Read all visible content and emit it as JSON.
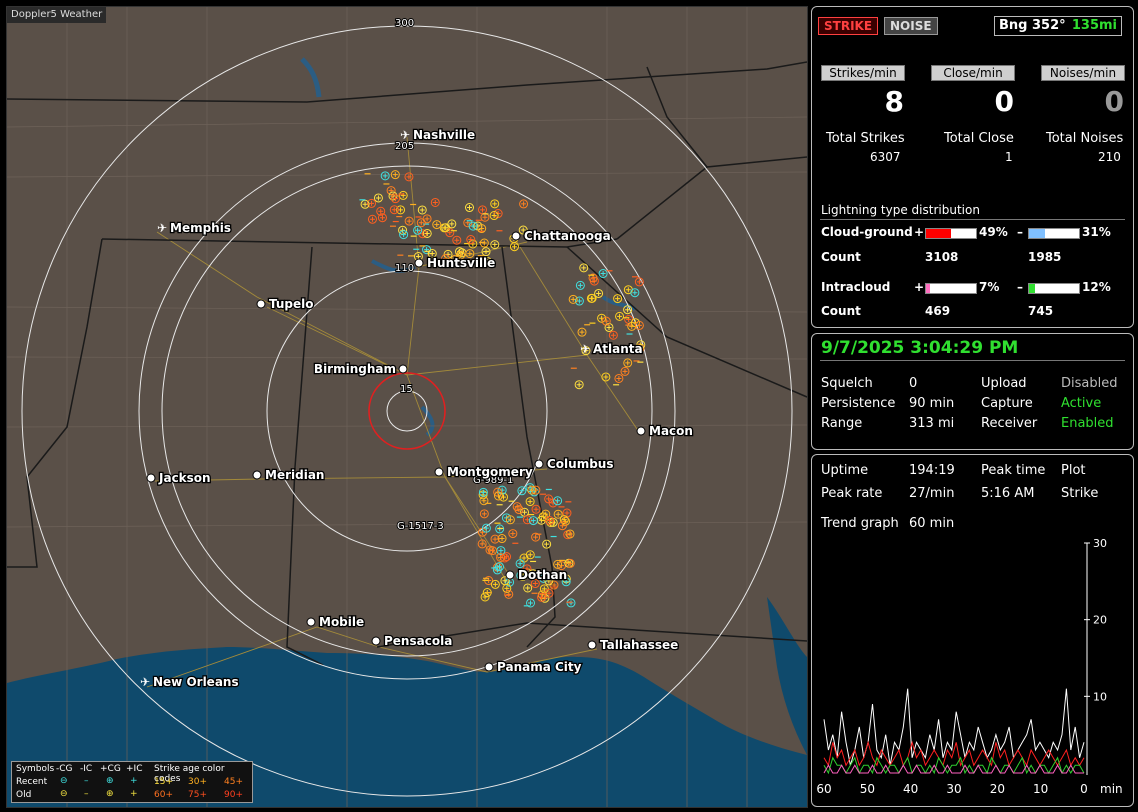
{
  "app": {
    "title": "Doppler5 Weather"
  },
  "map": {
    "ring_labels": [
      "300",
      "205",
      "110",
      "15"
    ],
    "cities": [
      {
        "name": "Nashville",
        "type": "airport"
      },
      {
        "name": "Memphis",
        "type": "airport"
      },
      {
        "name": "Chattanooga",
        "type": "city"
      },
      {
        "name": "Huntsville",
        "type": "city"
      },
      {
        "name": "Tupelo",
        "type": "city"
      },
      {
        "name": "Atlanta",
        "type": "airport"
      },
      {
        "name": "Birmingham",
        "type": "city"
      },
      {
        "name": "Macon",
        "type": "city"
      },
      {
        "name": "Jackson",
        "type": "city"
      },
      {
        "name": "Meridian",
        "type": "city"
      },
      {
        "name": "Montgomery",
        "type": "city"
      },
      {
        "name": "Columbus",
        "type": "city"
      },
      {
        "name": "Dothan",
        "type": "city"
      },
      {
        "name": "Mobile",
        "type": "city"
      },
      {
        "name": "Pensacola",
        "type": "city"
      },
      {
        "name": "Tallahassee",
        "type": "city"
      },
      {
        "name": "Panama City",
        "type": "city"
      },
      {
        "name": "New Orleans",
        "type": "airport"
      }
    ],
    "road_labels": [
      "G-989-1",
      "G-1517-3"
    ],
    "colors": {
      "land": "#5a5048",
      "water": "#0f4a6c",
      "rings": "#e8e8e8",
      "center_ring": "#e02020"
    }
  },
  "legend": {
    "symbols_label": "Symbols",
    "columns": [
      "-CG",
      "-IC",
      "+CG",
      "+IC"
    ],
    "rows": [
      "Recent",
      "Old"
    ],
    "age_title": "Strike age color codes",
    "recent_ages": [
      "15+",
      "30+",
      "45+"
    ],
    "old_ages": [
      "60+",
      "75+",
      "90+"
    ]
  },
  "header": {
    "strike_label": "STRIKE",
    "noise_label": "NOISE",
    "bearing": "Bng 352°",
    "distance": "135mi"
  },
  "rates": [
    {
      "label": "Strikes/min",
      "value": "8",
      "total_label": "Total Strikes",
      "total": "6307"
    },
    {
      "label": "Close/min",
      "value": "0",
      "total_label": "Total Close",
      "total": "1"
    },
    {
      "label": "Noises/min",
      "value": "0",
      "total_label": "Total Noises",
      "total": "210"
    }
  ],
  "distribution": {
    "title": "Lightning type distribution",
    "count_label": "Count",
    "cloud_ground": {
      "label": "Cloud-ground",
      "pos_pct": "49%",
      "neg_pct": "31%",
      "pos_count": "3108",
      "neg_count": "1985",
      "pos_fill": 0.49,
      "neg_fill": 0.31
    },
    "intracloud": {
      "label": "Intracloud",
      "pos_pct": "7%",
      "neg_pct": "12%",
      "pos_count": "469",
      "neg_count": "745",
      "pos_fill": 0.07,
      "neg_fill": 0.12
    },
    "plus": "+",
    "minus": "–"
  },
  "status": {
    "datetime": "9/7/2025 3:04:29 PM",
    "squelch_label": "Squelch",
    "squelch": "0",
    "persistence_label": "Persistence",
    "persistence": "90 min",
    "range_label": "Range",
    "range": "313 mi",
    "upload_label": "Upload",
    "upload": "Disabled",
    "capture_label": "Capture",
    "capture": "Active",
    "receiver_label": "Receiver",
    "receiver": "Enabled"
  },
  "stats": {
    "uptime_label": "Uptime",
    "uptime": "194:19",
    "peak_time_label": "Peak time",
    "peak_time": "5:16 AM",
    "plot_label": "Plot",
    "plot": "Strike",
    "peak_rate_label": "Peak rate",
    "peak_rate": "27/min",
    "trend_label": "Trend graph",
    "trend": "60 min"
  },
  "chart_data": {
    "type": "line",
    "x_ticks": [
      "60",
      "50",
      "40",
      "30",
      "20",
      "10",
      "0"
    ],
    "x_unit": "min",
    "y_ticks": [
      "30",
      "20",
      "10"
    ],
    "ylim": [
      0,
      30
    ],
    "xlim": [
      60,
      0
    ],
    "series": [
      {
        "color": "#ffffff",
        "values": [
          7,
          3,
          5,
          2,
          8,
          4,
          1,
          3,
          6,
          2,
          4,
          9,
          3,
          2,
          5,
          1,
          4,
          3,
          6,
          11,
          2,
          4,
          3,
          2,
          5,
          3,
          7,
          2,
          4,
          3,
          8,
          5,
          2,
          4,
          3,
          6,
          4,
          2,
          3,
          5,
          3,
          4,
          6,
          2,
          3,
          4,
          5,
          7,
          3,
          4,
          3,
          2,
          4,
          3,
          5,
          11,
          3,
          6,
          2,
          4
        ]
      },
      {
        "color": "#ff2020",
        "values": [
          2,
          1,
          4,
          2,
          3,
          1,
          2,
          3,
          1,
          2,
          4,
          2,
          1,
          3,
          2,
          1,
          2,
          3,
          1,
          2,
          4,
          2,
          3,
          1,
          2,
          3,
          2,
          1,
          3,
          2,
          4,
          1,
          2,
          3,
          1,
          2,
          3,
          2,
          1,
          4,
          2,
          3,
          1,
          2,
          3,
          2,
          1,
          3,
          2,
          1,
          2,
          3,
          2,
          1,
          2,
          3,
          1,
          2,
          1,
          2
        ]
      },
      {
        "color": "#30d030",
        "values": [
          1,
          0,
          2,
          1,
          1,
          0,
          1,
          2,
          0,
          1,
          1,
          0,
          2,
          1,
          0,
          1,
          1,
          0,
          1,
          2,
          0,
          1,
          1,
          0,
          1,
          0,
          2,
          1,
          0,
          1,
          1,
          2,
          0,
          1,
          0,
          1,
          1,
          0,
          2,
          1,
          0,
          1,
          1,
          0,
          1,
          2,
          0,
          1,
          0,
          1,
          1,
          0,
          1,
          2,
          0,
          1,
          0,
          1,
          1,
          0
        ]
      },
      {
        "color": "#ff60c0",
        "values": [
          0,
          1,
          0,
          0,
          1,
          0,
          0,
          1,
          0,
          0,
          0,
          1,
          0,
          0,
          1,
          0,
          0,
          0,
          1,
          0,
          0,
          1,
          0,
          0,
          0,
          1,
          0,
          0,
          1,
          0,
          0,
          0,
          1,
          0,
          0,
          1,
          0,
          0,
          0,
          1,
          0,
          0,
          1,
          0,
          0,
          0,
          1,
          0,
          0,
          1,
          0,
          0,
          0,
          1,
          0,
          0,
          1,
          0,
          0,
          0
        ]
      }
    ]
  }
}
